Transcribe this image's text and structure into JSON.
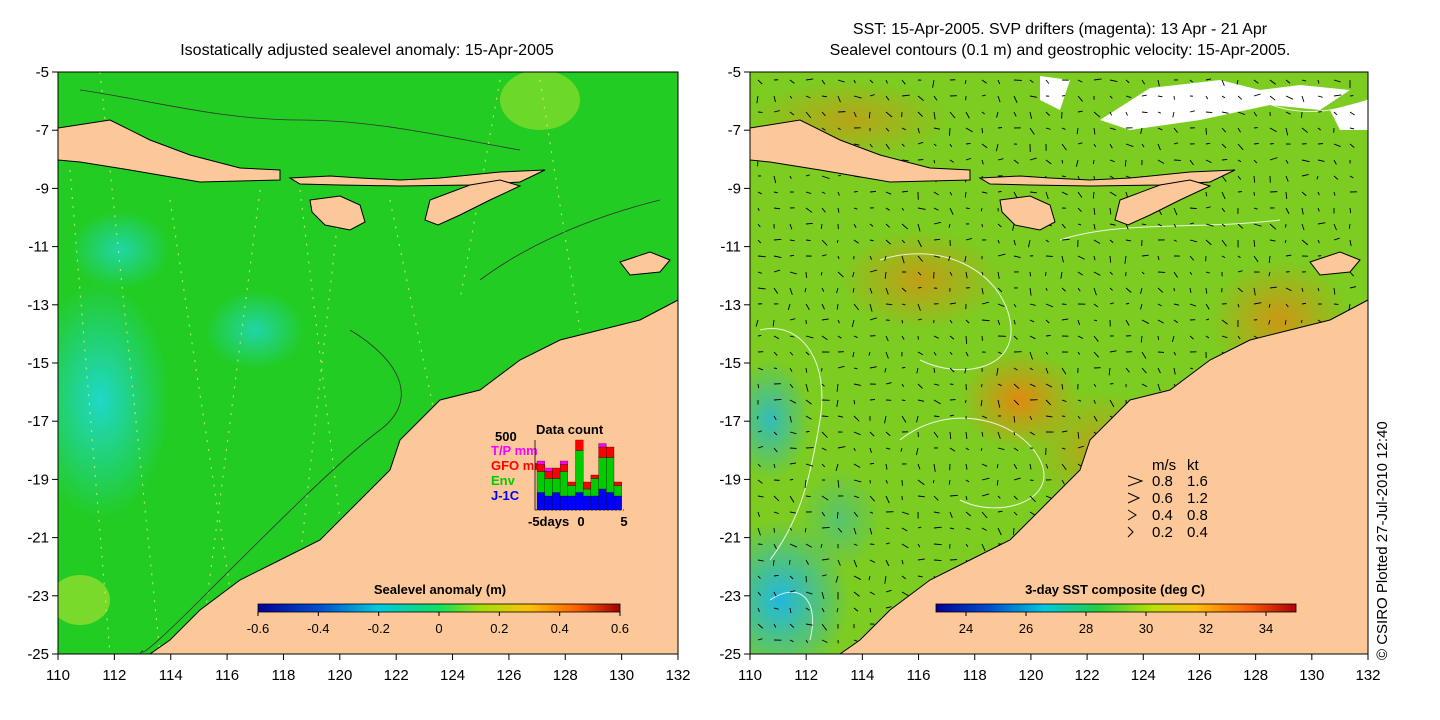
{
  "left_panel": {
    "title": "Isostatically adjusted sealevel anomaly: 15-Apr-2005",
    "colorbar": {
      "label": "Sealevel anomaly (m)",
      "ticks": [
        "-0.6",
        "-0.4",
        "-0.2",
        "0",
        "0.2",
        "0.4",
        "0.6"
      ]
    },
    "data_count": {
      "title": "Data count",
      "max_label": "500",
      "legend": [
        {
          "label": "T/P mm",
          "color": "#ff00ff"
        },
        {
          "label": "GFO mm",
          "color": "#ff0000"
        },
        {
          "label": "Env",
          "color": "#00cc00"
        },
        {
          "label": "J-1C",
          "color": "#0000ff"
        }
      ],
      "x_labels": [
        "-5days",
        "0",
        "5"
      ],
      "bars": [
        {
          "j1c": 0.25,
          "env": 0.3,
          "gfo": 0.1,
          "tp": 0.05
        },
        {
          "j1c": 0.2,
          "env": 0.25,
          "gfo": 0.1,
          "tp": 0.05
        },
        {
          "j1c": 0.25,
          "env": 0.2,
          "gfo": 0.15,
          "tp": 0.0
        },
        {
          "j1c": 0.2,
          "env": 0.35,
          "gfo": 0.1,
          "tp": 0.05
        },
        {
          "j1c": 0.2,
          "env": 0.15,
          "gfo": 0.05,
          "tp": 0.0
        },
        {
          "j1c": 0.25,
          "env": 0.6,
          "gfo": 0.15,
          "tp": 0.0
        },
        {
          "j1c": 0.2,
          "env": 0.1,
          "gfo": 0.1,
          "tp": 0.0
        },
        {
          "j1c": 0.2,
          "env": 0.25,
          "gfo": 0.05,
          "tp": 0.0
        },
        {
          "j1c": 0.3,
          "env": 0.45,
          "gfo": 0.15,
          "tp": 0.05
        },
        {
          "j1c": 0.25,
          "env": 0.5,
          "gfo": 0.15,
          "tp": 0.0
        },
        {
          "j1c": 0.2,
          "env": 0.15,
          "gfo": 0.05,
          "tp": 0.0
        }
      ]
    }
  },
  "right_panel": {
    "title_line1": "SST: 15-Apr-2005. SVP drifters (magenta): 13 Apr - 21 Apr",
    "title_line2": "Sealevel contours (0.1 m) and geostrophic velocity: 15-Apr-2005.",
    "colorbar": {
      "label": "3-day SST composite (deg C)",
      "ticks": [
        "24",
        "26",
        "28",
        "30",
        "32",
        "34"
      ]
    },
    "velocity_key": {
      "header_ms": "m/s",
      "header_kt": "kt",
      "rows": [
        {
          "ms": "0.8",
          "kt": "1.6"
        },
        {
          "ms": "0.6",
          "kt": "1.2"
        },
        {
          "ms": "0.4",
          "kt": "0.8"
        },
        {
          "ms": "0.2",
          "kt": "0.4"
        }
      ]
    }
  },
  "axes": {
    "lat_ticks": [
      "-5",
      "-7",
      "-9",
      "-11",
      "-13",
      "-15",
      "-17",
      "-19",
      "-21",
      "-23",
      "-25"
    ],
    "lon_ticks": [
      "110",
      "112",
      "114",
      "116",
      "118",
      "120",
      "122",
      "124",
      "126",
      "128",
      "130",
      "132"
    ],
    "lon_range": [
      110,
      132
    ],
    "lat_range": [
      -5,
      -25
    ]
  },
  "credit": "© CSIRO Plotted 27-Jul-2010 12:40",
  "colors": {
    "land": "#fcc89a",
    "ocean_sla": "#22cc22",
    "ocean_sst": "#7ccc22"
  }
}
